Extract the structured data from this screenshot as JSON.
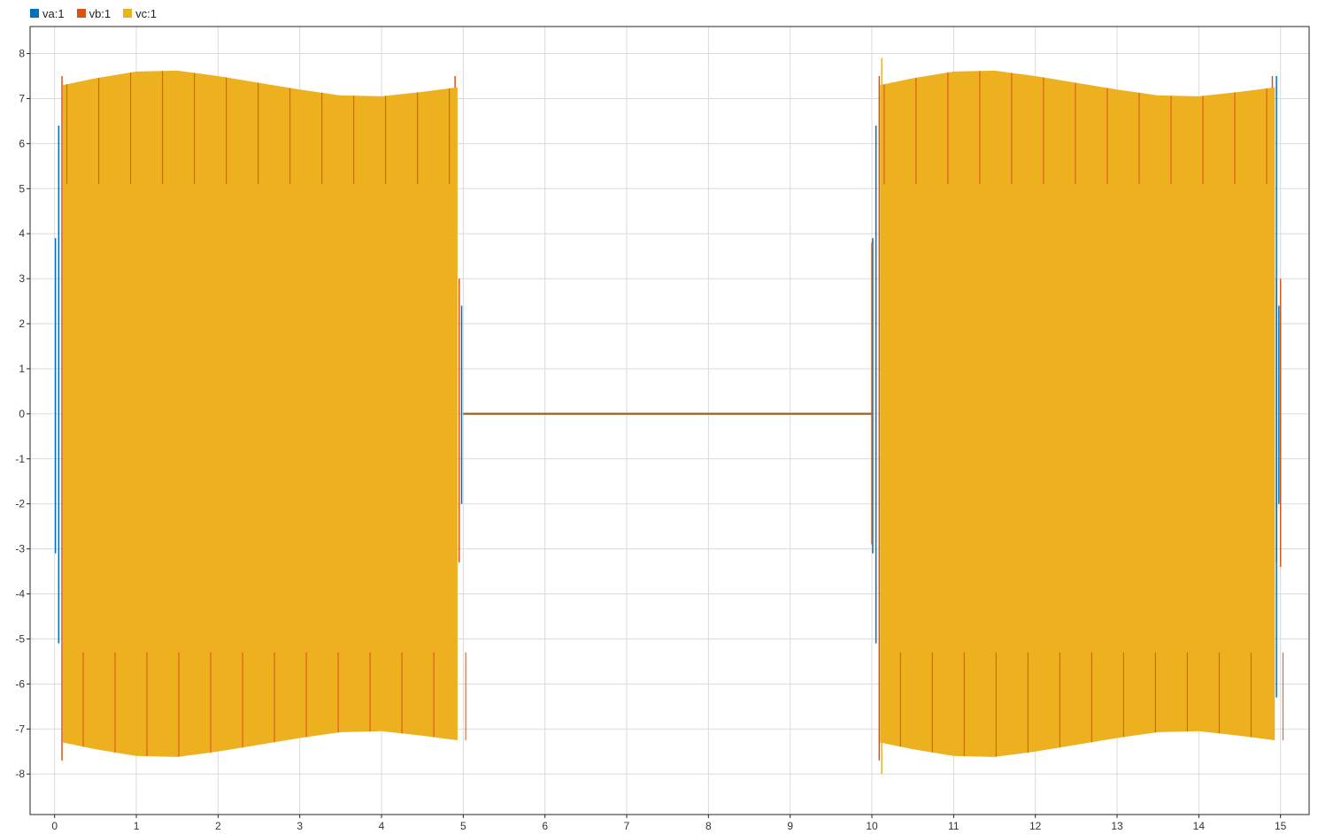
{
  "legend": [
    {
      "name": "va:1",
      "color": "#0072BD"
    },
    {
      "name": "vb:1",
      "color": "#D95319"
    },
    {
      "name": "vc:1",
      "color": "#EDB120"
    }
  ],
  "chart_data": {
    "type": "line",
    "title": "",
    "xlabel": "",
    "ylabel": "",
    "xlim": [
      -0.3,
      15.35
    ],
    "ylim": [
      -8.9,
      8.6
    ],
    "xticks": [
      0,
      1,
      2,
      3,
      4,
      5,
      6,
      7,
      8,
      9,
      10,
      11,
      12,
      13,
      14,
      15
    ],
    "yticks": [
      8,
      7,
      6,
      5,
      4,
      3,
      2,
      1,
      0,
      -1,
      -2,
      -3,
      -4,
      -5,
      -6,
      -7,
      -8
    ],
    "grid": true,
    "legend_position": "top-left",
    "series": [
      {
        "name": "va:1",
        "color": "#0072BD"
      },
      {
        "name": "vb:1",
        "color": "#D95319"
      },
      {
        "name": "vc:1",
        "color": "#EDB120"
      }
    ],
    "segments": [
      {
        "label": "active",
        "x_start": 0,
        "x_end": 5,
        "amplitude_min": 7.05,
        "amplitude_max": 7.62
      },
      {
        "label": "zero",
        "x_start": 5,
        "x_end": 10,
        "value": 0
      },
      {
        "label": "active",
        "x_start": 10,
        "x_end": 15,
        "amplitude_min": 7.05,
        "amplitude_max": 7.62
      }
    ],
    "envelope_upper": [
      [
        0.1,
        7.3
      ],
      [
        0.5,
        7.45
      ],
      [
        1.0,
        7.6
      ],
      [
        1.5,
        7.62
      ],
      [
        2.0,
        7.5
      ],
      [
        2.5,
        7.35
      ],
      [
        3.0,
        7.2
      ],
      [
        3.5,
        7.07
      ],
      [
        4.0,
        7.05
      ],
      [
        4.5,
        7.15
      ],
      [
        4.93,
        7.25
      ]
    ],
    "envelope_lower": [
      [
        0.1,
        -7.3
      ],
      [
        0.5,
        -7.45
      ],
      [
        1.0,
        -7.6
      ],
      [
        1.5,
        -7.62
      ],
      [
        2.0,
        -7.5
      ],
      [
        2.5,
        -7.35
      ],
      [
        3.0,
        -7.2
      ],
      [
        3.5,
        -7.07
      ],
      [
        4.0,
        -7.05
      ],
      [
        4.5,
        -7.15
      ],
      [
        4.93,
        -7.25
      ]
    ]
  }
}
